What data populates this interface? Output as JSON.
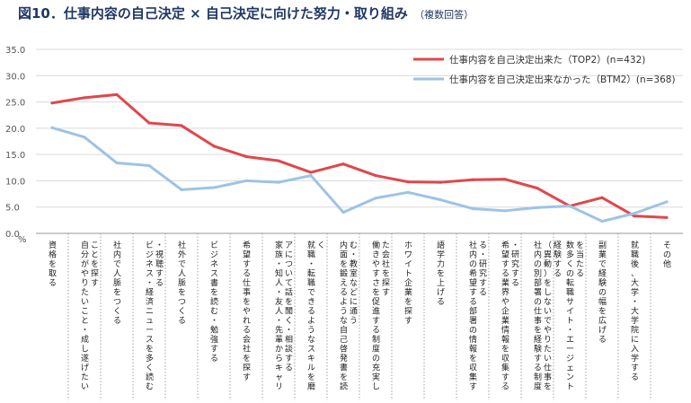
{
  "header": {
    "title": "図10．仕事内容の自己決定 × 自己決定に向けた努力・取り組み",
    "note": "（複数回答）"
  },
  "chart_data": {
    "type": "line",
    "y_unit": "%",
    "ylim": [
      0,
      35
    ],
    "yticks": [
      "0.0",
      "5.0",
      "10.0",
      "15.0",
      "20.0",
      "25.0",
      "30.0",
      "35.0"
    ],
    "grid": true,
    "legend_position": "top-right",
    "categories": [
      "資格を取る",
      "自分がやりたいこと・成し遂げたいことを探す",
      "社内で人脈をつくる",
      "ビジネス・経済ニュースを多く読む・視聴する",
      "社外で人脈をつくる",
      "ビジネス書を読む・勉強する",
      "希望する仕事をやれる会社を探す",
      "家族・知人・友人・先輩からキャリアについて話を聞く・相談する",
      "就職・転職できるようなスキルを磨く",
      "内面を鍛えるような自己啓発書を読む・教室などに通う",
      "働きやすさを促進する制度の充実した会社を探す",
      "ホワイト企業を探す",
      "語学力を上げる",
      "社内の希望する部署の情報を収集する・研究する",
      "希望する業界や企業情報を収集する・研究する",
      "社内の別部署の仕事を経験する制度（異動）をしないでやりたい仕事を経験する",
      "数多くの転職サイト・エージェントを当たる",
      "副業で経験の幅を広げる",
      "就職後、大学・大学院に入学する",
      "その他"
    ],
    "series": [
      {
        "name": "仕事内容を自己決定出来た（TOP2）(n=432)",
        "color": "#e0474c",
        "values": [
          24.8,
          25.8,
          26.4,
          21.0,
          20.5,
          16.6,
          14.6,
          13.8,
          11.6,
          13.2,
          11.0,
          9.8,
          9.7,
          10.2,
          10.3,
          8.6,
          5.2,
          6.8,
          3.3,
          3.0
        ]
      },
      {
        "name": "仕事内容を自己決定出来なかった（BTM2）(n=368)",
        "color": "#9dc3e6",
        "values": [
          20.1,
          18.3,
          13.4,
          12.9,
          8.3,
          8.7,
          10.0,
          9.7,
          11.0,
          4.0,
          6.7,
          7.8,
          6.4,
          4.7,
          4.3,
          4.9,
          5.2,
          2.3,
          3.8,
          6.0
        ]
      }
    ]
  }
}
